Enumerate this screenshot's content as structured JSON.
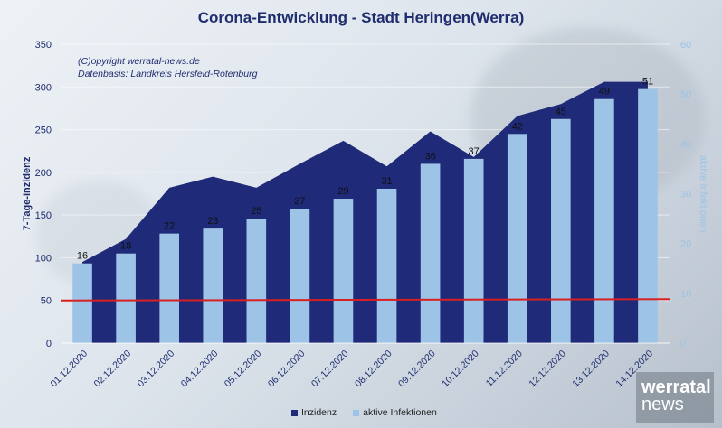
{
  "title": "Corona-Entwicklung - Stadt Heringen(Werra)",
  "copyright_line1": "(C)opyright werratal-news.de",
  "copyright_line2": "Datenbasis: Landkreis Hersfeld-Rotenburg",
  "logo_line1": "werratal",
  "logo_line2": "news",
  "colors": {
    "inzidenz": "#1f2a78",
    "infektionen": "#9dc3e6",
    "threshold": "#d92020",
    "title": "#1f2d6e"
  },
  "chart_data": {
    "type": "area+bar",
    "title": "Corona-Entwicklung - Stadt Heringen(Werra)",
    "categories": [
      "01.12.2020",
      "02.12.2020",
      "03.12.2020",
      "04.12.2020",
      "05.12.2020",
      "06.12.2020",
      "07.12.2020",
      "08.12.2020",
      "09.12.2020",
      "10.12.2020",
      "11.12.2020",
      "12.12.2020",
      "13.12.2020",
      "14.12.2020"
    ],
    "y_left": {
      "label": "7-Tage-Inzidenz",
      "ylim": [
        0,
        350
      ],
      "ticks": [
        0,
        50,
        100,
        150,
        200,
        250,
        300,
        350
      ]
    },
    "y_right": {
      "label": "aktive Infektionen",
      "ylim": [
        0,
        60
      ],
      "ticks": [
        0,
        10,
        20,
        30,
        40,
        50,
        60
      ]
    },
    "series": [
      {
        "name": "Inzidenz",
        "type": "area",
        "axis": "left",
        "values": [
          95,
          122,
          182,
          195,
          182,
          210,
          237,
          207,
          248,
          218,
          266,
          280,
          306,
          306
        ]
      },
      {
        "name": "aktive Infektionen",
        "type": "bar",
        "axis": "right",
        "values": [
          16,
          18,
          22,
          23,
          25,
          27,
          29,
          31,
          36,
          37,
          42,
          45,
          49,
          51
        ]
      }
    ],
    "threshold": {
      "axis": "left",
      "values": [
        50,
        51.5
      ]
    },
    "legend": "bottom",
    "grid": true
  }
}
